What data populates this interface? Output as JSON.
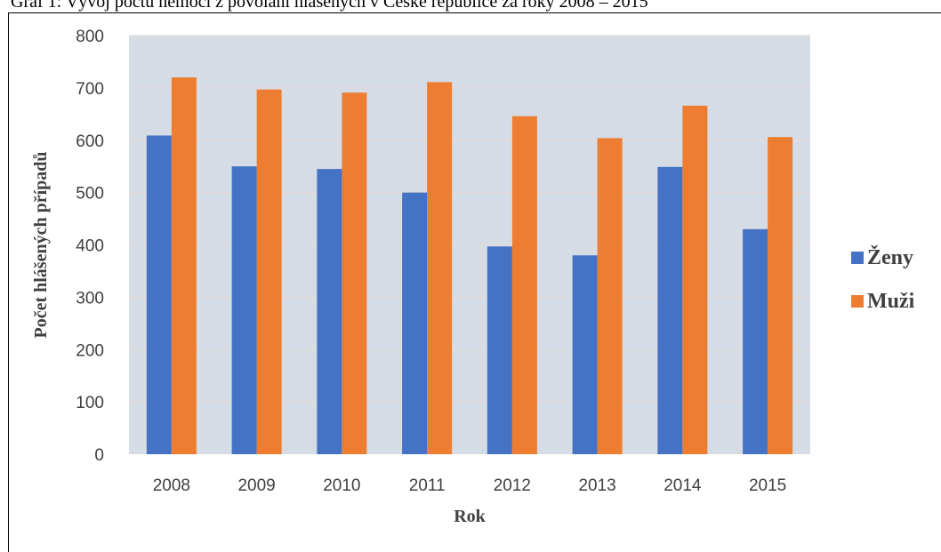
{
  "caption": "Graf 1: Vývoj počtu nemocí z povolání hlášených v České republice za roky 2008 – 2015",
  "colors": {
    "zeny": "#4472C4",
    "muzi": "#ED7D31",
    "plot_bg": "#D6DCE5",
    "grid": "#E4D9D6"
  },
  "chart_data": {
    "type": "bar",
    "title": "",
    "xlabel": "Rok",
    "ylabel": "Počet hlášených případů",
    "categories": [
      "2008",
      "2009",
      "2010",
      "2011",
      "2012",
      "2013",
      "2014",
      "2015"
    ],
    "series": [
      {
        "name": "Ženy",
        "values": [
          609,
          550,
          545,
          500,
          397,
          380,
          549,
          430
        ]
      },
      {
        "name": "Muži",
        "values": [
          720,
          697,
          691,
          711,
          646,
          604,
          666,
          606
        ]
      }
    ],
    "ylim": [
      0,
      800
    ],
    "yticks": [
      "0",
      "100",
      "200",
      "300",
      "400",
      "500",
      "600",
      "700",
      "800"
    ],
    "grid": true,
    "legend_position": "right"
  }
}
